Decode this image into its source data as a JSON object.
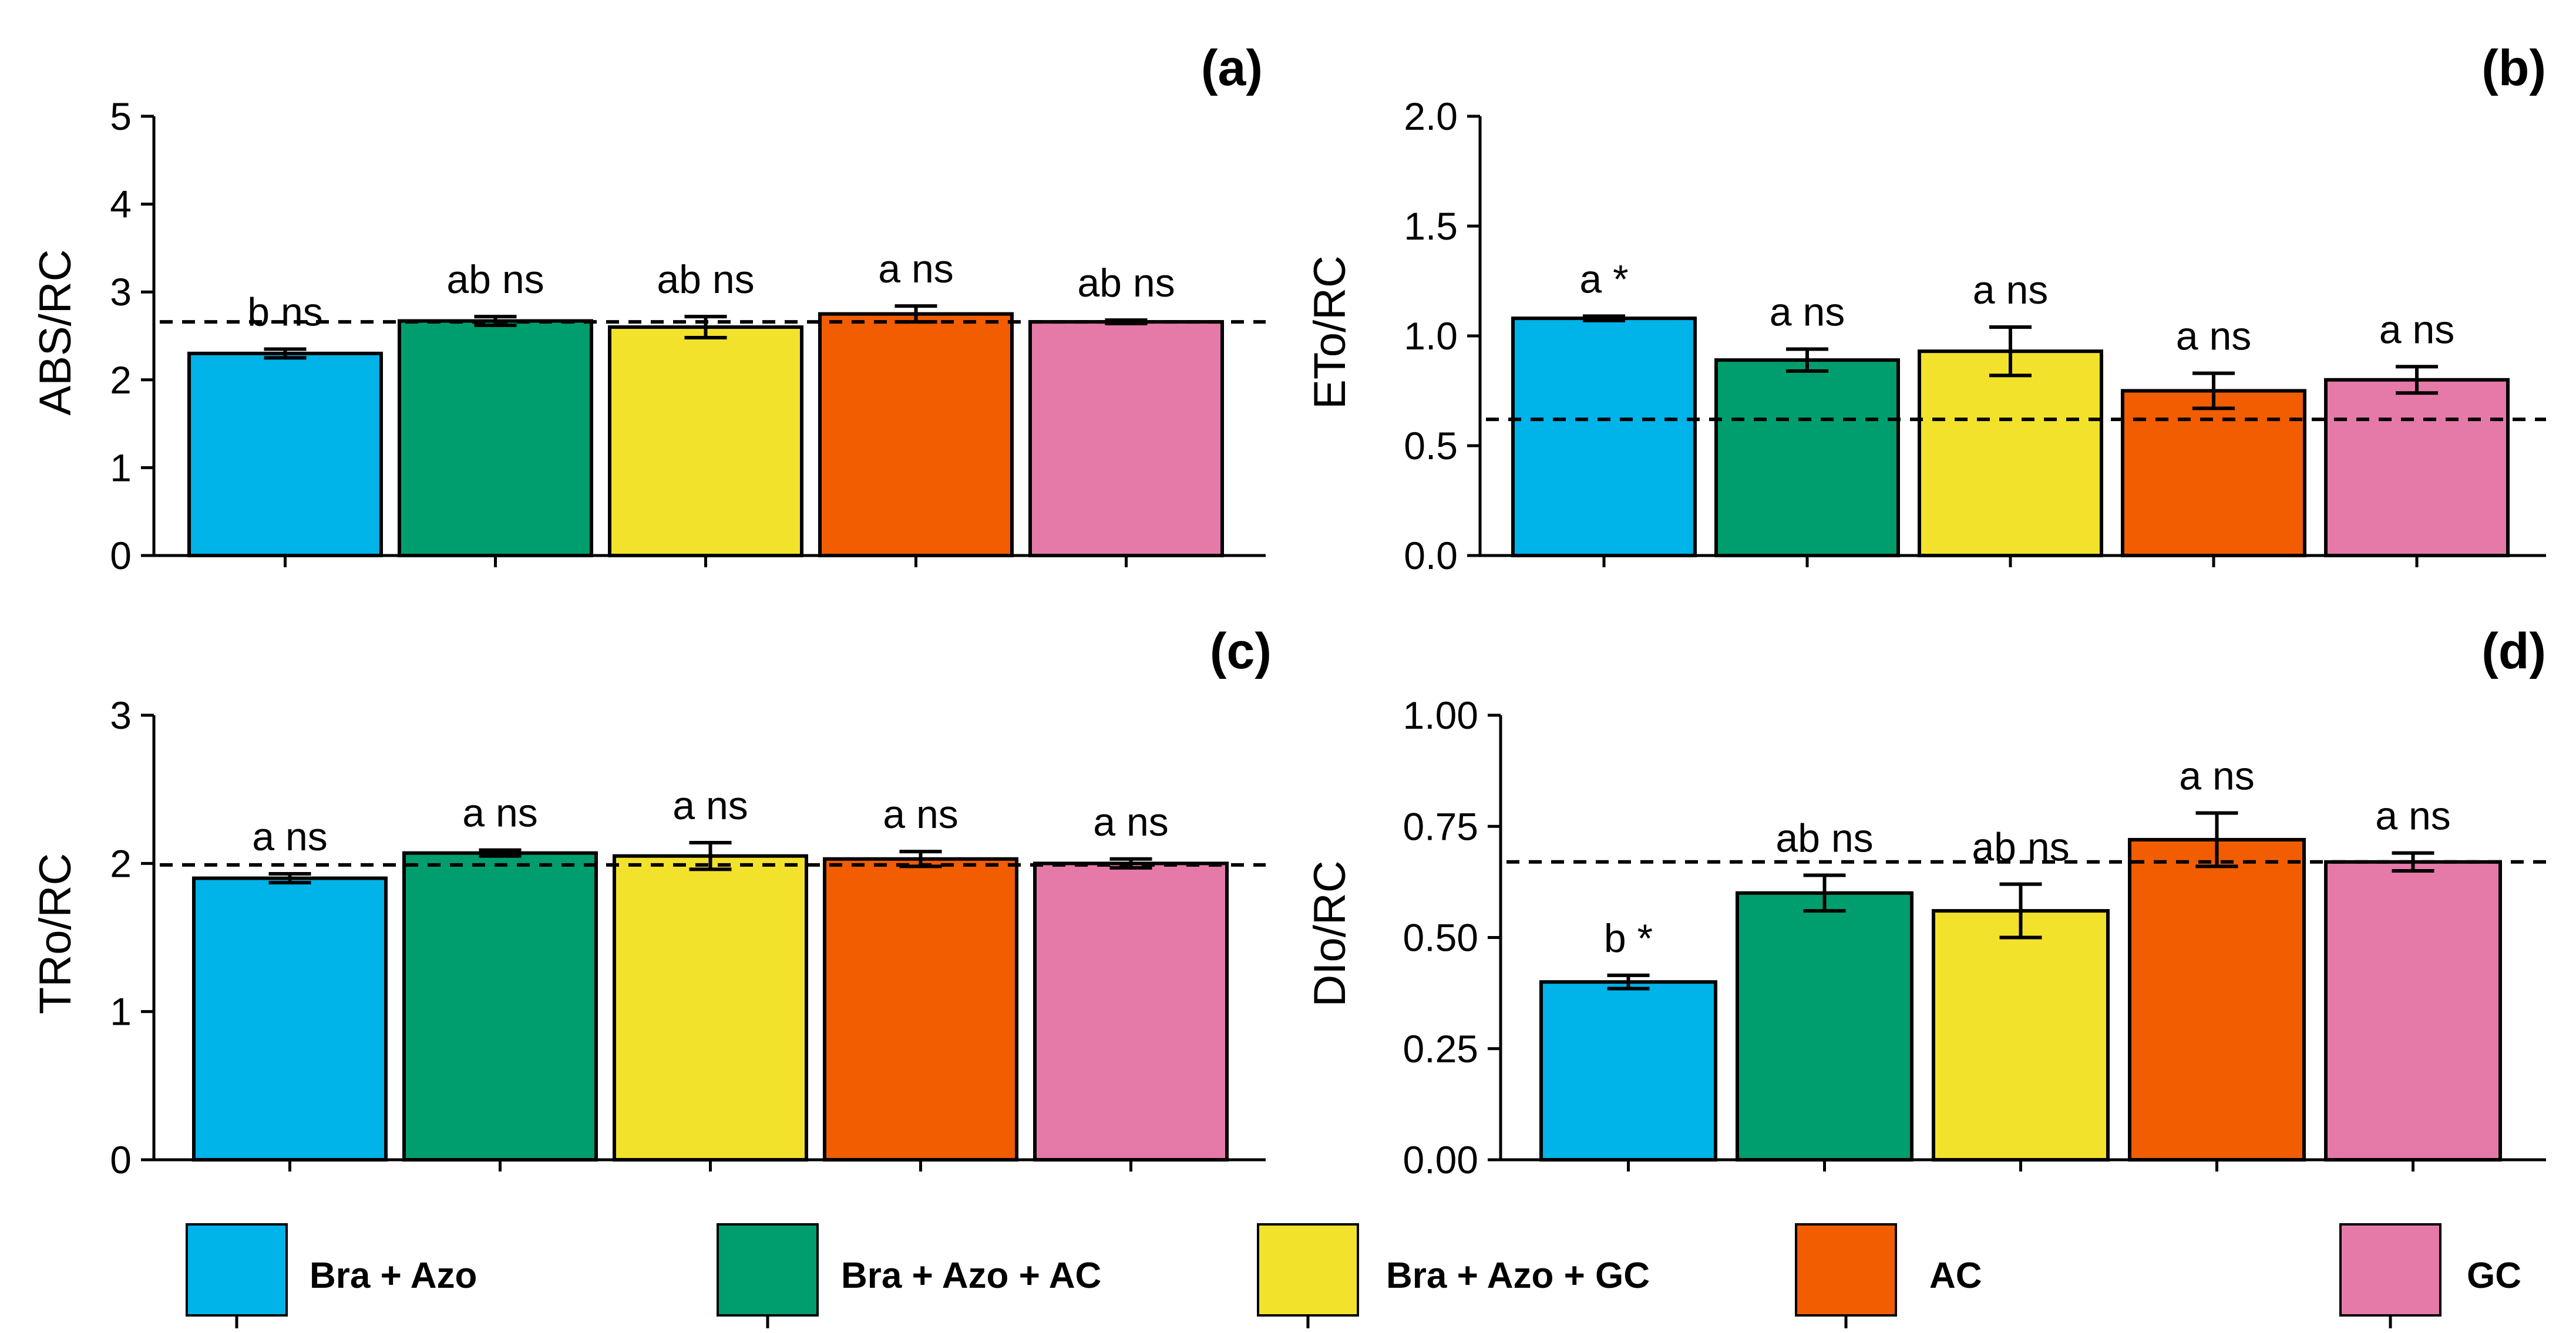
{
  "legend": [
    {
      "label": "Bra + Azo",
      "color": "#00b3e9"
    },
    {
      "label": "Bra + Azo + AC",
      "color": "#009e6e"
    },
    {
      "label": "Bra + Azo + GC",
      "color": "#f2e22c"
    },
    {
      "label": "AC",
      "color": "#f15d00"
    },
    {
      "label": "GC",
      "color": "#e57aa9"
    }
  ],
  "chart_data": [
    {
      "type": "bar",
      "panel": "(a)",
      "ylabel": "ABS/RC",
      "categories": [
        "Bra + Azo",
        "Bra + Azo + AC",
        "Bra + Azo + GC",
        "AC",
        "GC"
      ],
      "values": [
        2.3,
        2.67,
        2.6,
        2.75,
        2.66
      ],
      "errors": [
        0.05,
        0.05,
        0.12,
        0.09,
        0.02
      ],
      "labels": [
        "b ns",
        "ab ns",
        "ab ns",
        "a ns",
        "ab ns"
      ],
      "reference": 2.66,
      "ylim": [
        0,
        5
      ],
      "yticks": [
        0,
        1,
        2,
        3,
        4,
        5
      ],
      "ytick_labels": [
        "0",
        "1",
        "2",
        "3",
        "4",
        "5"
      ]
    },
    {
      "type": "bar",
      "panel": "(b)",
      "ylabel": "ETo/RC",
      "categories": [
        "Bra + Azo",
        "Bra + Azo + AC",
        "Bra + Azo + GC",
        "AC",
        "GC"
      ],
      "values": [
        1.08,
        0.89,
        0.93,
        0.75,
        0.8
      ],
      "errors": [
        0.01,
        0.05,
        0.11,
        0.08,
        0.06
      ],
      "labels": [
        "a *",
        "a ns",
        "a ns",
        "a ns",
        "a ns"
      ],
      "reference": 0.62,
      "ylim": [
        0,
        2
      ],
      "yticks": [
        0,
        0.5,
        1,
        1.5,
        2
      ],
      "ytick_labels": [
        "0.0",
        "0.5",
        "1.0",
        "1.5",
        "2.0"
      ]
    },
    {
      "type": "bar",
      "panel": "(c)",
      "ylabel": "TRo/RC",
      "categories": [
        "Bra + Azo",
        "Bra + Azo + AC",
        "Bra + Azo + GC",
        "AC",
        "GC"
      ],
      "values": [
        1.9,
        2.07,
        2.05,
        2.03,
        2.0
      ],
      "errors": [
        0.03,
        0.02,
        0.09,
        0.05,
        0.03
      ],
      "labels": [
        "a ns",
        "a ns",
        "a ns",
        "a ns",
        "a ns"
      ],
      "reference": 1.99,
      "ylim": [
        0,
        3
      ],
      "yticks": [
        0,
        1,
        2,
        3
      ],
      "ytick_labels": [
        "0",
        "1",
        "2",
        "3"
      ]
    },
    {
      "type": "bar",
      "panel": "(d)",
      "ylabel": "DIo/RC",
      "categories": [
        "Bra + Azo",
        "Bra + Azo + AC",
        "Bra + Azo + GC",
        "AC",
        "GC"
      ],
      "values": [
        0.4,
        0.6,
        0.56,
        0.72,
        0.67
      ],
      "errors": [
        0.015,
        0.04,
        0.06,
        0.06,
        0.02
      ],
      "labels": [
        "b *",
        "ab ns",
        "ab ns",
        "a ns",
        "a ns"
      ],
      "reference": 0.67,
      "ylim": [
        0,
        1
      ],
      "yticks": [
        0,
        0.25,
        0.5,
        0.75,
        1
      ],
      "ytick_labels": [
        "0.00",
        "0.25",
        "0.50",
        "0.75",
        "1.00"
      ]
    }
  ]
}
